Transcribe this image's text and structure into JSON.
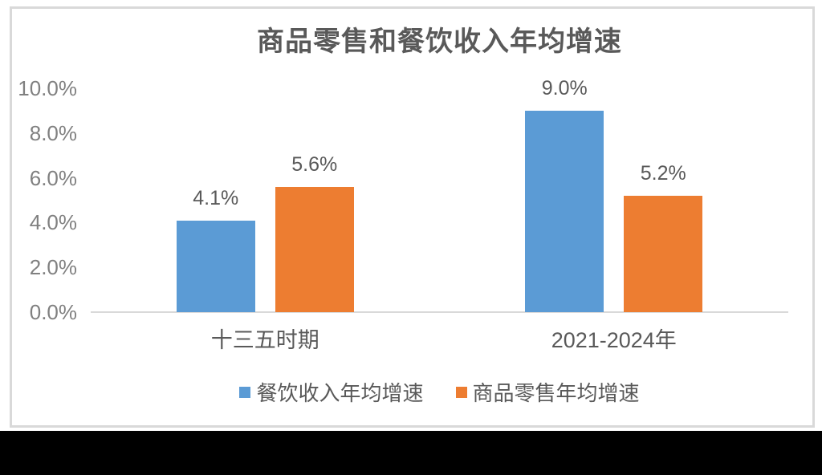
{
  "page": {
    "background": "#ffffff",
    "panel_border_color": "#d9d9d9",
    "letterbox_color": "#000000"
  },
  "chart_data": {
    "type": "bar",
    "title": "商品零售和餐饮收入年均增速",
    "title_color": "#595959",
    "categories": [
      "十三五时期",
      "2021-2024年"
    ],
    "series": [
      {
        "key": "catering-income-growth",
        "name": "餐饮收入年均增速",
        "color": "#5B9BD5",
        "values": [
          4.1,
          9.0
        ],
        "labels": [
          "4.1%",
          "9.0%"
        ]
      },
      {
        "key": "goods-retail-growth",
        "name": "商品零售年均增速",
        "color": "#ED7D31",
        "values": [
          5.6,
          5.2
        ],
        "labels": [
          "5.6%",
          "5.2%"
        ]
      }
    ],
    "ylim": [
      0,
      10
    ],
    "yticks": [
      {
        "label": "10.0%",
        "value": 10
      },
      {
        "label": "8.0%",
        "value": 8
      },
      {
        "label": "6.0%",
        "value": 6
      },
      {
        "label": "4.0%",
        "value": 4
      },
      {
        "label": "2.0%",
        "value": 2
      },
      {
        "label": "0.0%",
        "value": 0
      }
    ],
    "grid": false,
    "legend_position": "bottom",
    "axis_line_color": "#d9d9d9",
    "tick_label_color": "#808080",
    "data_label_color": "#595959",
    "category_label_color": "#595959",
    "legend_text_color": "#595959"
  }
}
